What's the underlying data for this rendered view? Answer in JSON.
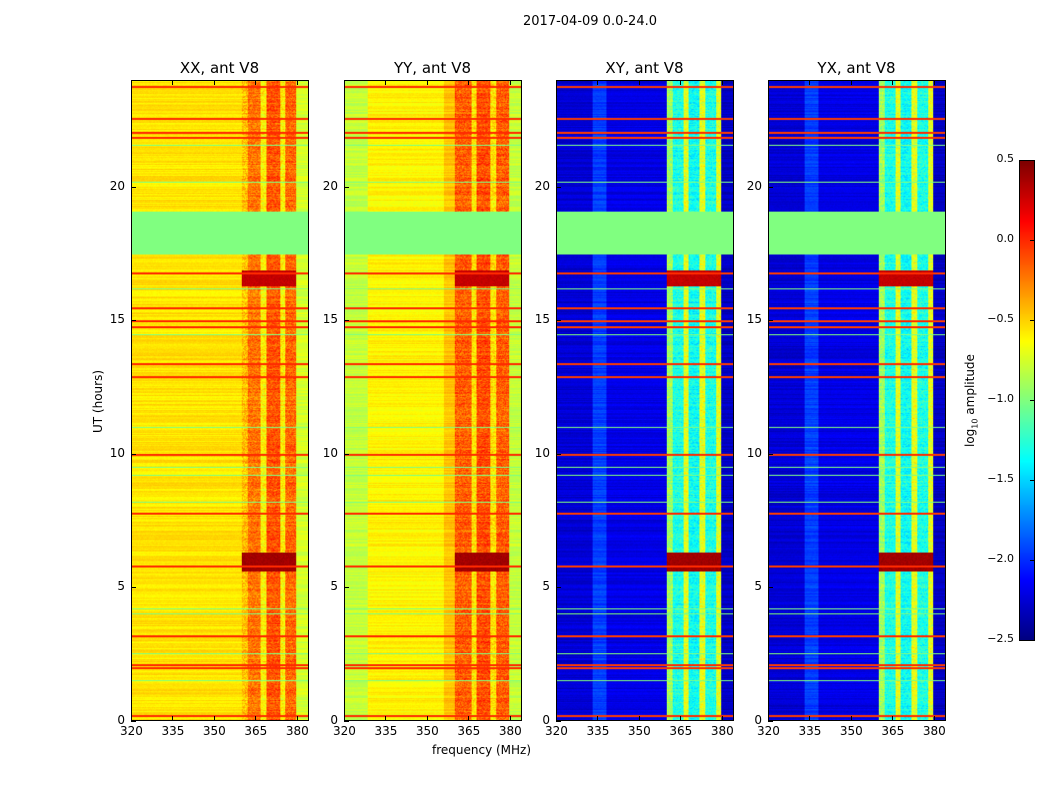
{
  "suptitle": "2017-04-09 0.0-24.0",
  "chart_data": {
    "type": "heatmap",
    "xlabel": "frequency (MHz)",
    "ylabel": "UT (hours)",
    "xlim": [
      320,
      384.4
    ],
    "ylim": [
      0,
      24
    ],
    "xticks": [
      "320",
      "335",
      "350",
      "365",
      "380"
    ],
    "xtick_values": [
      320,
      335,
      350,
      365,
      380
    ],
    "yticks": [
      "0",
      "5",
      "10",
      "15",
      "20"
    ],
    "ytick_values": [
      0,
      5,
      10,
      15,
      20
    ],
    "colormap": "jet",
    "colorbar": {
      "label": "log10 amplitude",
      "label_main": "log",
      "label_sub": "10",
      "label_rest": " amplitude",
      "range": [
        -2.5,
        0.5
      ],
      "ticks": [
        "0.5",
        "0.0",
        "−0.5",
        "−1.0",
        "−1.5",
        "−2.0",
        "−2.5"
      ],
      "tick_values": [
        0.5,
        0.0,
        -0.5,
        -1.0,
        -1.5,
        -2.0,
        -2.5
      ]
    },
    "panels": [
      {
        "title": "XX, ant V8",
        "kind": "auto",
        "freq_profile": [
          [
            320,
            360,
            -0.55
          ],
          [
            360,
            362,
            -0.45
          ],
          [
            362,
            367,
            -0.22
          ],
          [
            367,
            369,
            -0.6
          ],
          [
            369,
            374,
            -0.12
          ],
          [
            374,
            376,
            -0.6
          ],
          [
            376,
            380,
            -0.18
          ],
          [
            380,
            384.4,
            -0.75
          ]
        ]
      },
      {
        "title": "YY, ant V8",
        "kind": "auto",
        "freq_profile": [
          [
            320,
            328,
            -0.8
          ],
          [
            328,
            356,
            -0.6
          ],
          [
            356,
            360,
            -0.45
          ],
          [
            360,
            366,
            -0.15
          ],
          [
            366,
            368,
            -0.55
          ],
          [
            368,
            373,
            -0.1
          ],
          [
            373,
            375,
            -0.55
          ],
          [
            375,
            380,
            -0.15
          ],
          [
            380,
            384.4,
            -0.8
          ]
        ]
      },
      {
        "title": "XY, ant V8",
        "kind": "cross",
        "freq_profile": [
          [
            320,
            333,
            -2.25
          ],
          [
            333,
            338,
            -1.95
          ],
          [
            338,
            360,
            -2.2
          ],
          [
            360,
            362,
            -0.9
          ],
          [
            362,
            366,
            -1.3
          ],
          [
            366,
            368,
            -0.7
          ],
          [
            368,
            372,
            -1.35
          ],
          [
            372,
            374,
            -0.7
          ],
          [
            374,
            378,
            -1.3
          ],
          [
            378,
            380,
            -0.7
          ],
          [
            380,
            384.4,
            -2.3
          ]
        ]
      },
      {
        "title": "YX, ant V8",
        "kind": "cross",
        "freq_profile": [
          [
            320,
            333,
            -2.25
          ],
          [
            333,
            338,
            -1.95
          ],
          [
            338,
            360,
            -2.2
          ],
          [
            360,
            362,
            -0.9
          ],
          [
            362,
            366,
            -1.3
          ],
          [
            366,
            368,
            -0.7
          ],
          [
            368,
            372,
            -1.35
          ],
          [
            372,
            374,
            -0.7
          ],
          [
            374,
            378,
            -1.3
          ],
          [
            378,
            380,
            -0.7
          ],
          [
            380,
            384.4,
            -2.3
          ]
        ]
      }
    ],
    "flagged_gap_hours": [
      17.5,
      19.1
    ],
    "flagged_value": -1.0,
    "strong_rows_hours": [
      [
        5.6,
        6.3,
        0.45
      ],
      [
        16.3,
        16.9,
        0.35
      ]
    ],
    "red_lines_hours": [
      0.2,
      2.0,
      2.1,
      3.2,
      5.8,
      7.8,
      10.0,
      12.9,
      13.4,
      14.8,
      15.0,
      15.5,
      16.8,
      21.9,
      22.1,
      22.6,
      23.8
    ],
    "green_lines_hours": [
      1.5,
      2.5,
      4.0,
      4.2,
      8.2,
      9.2,
      9.5,
      11.0,
      14.5,
      16.2,
      20.2,
      21.6
    ]
  }
}
